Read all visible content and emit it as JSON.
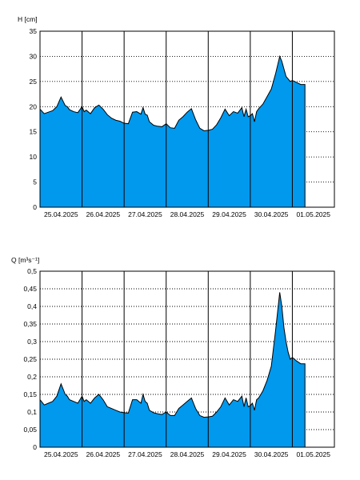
{
  "chart_data": [
    {
      "type": "area",
      "ylabel": "H [cm]",
      "ylim": [
        0,
        35
      ],
      "yticks": [
        "0",
        "5",
        "10",
        "15",
        "20",
        "25",
        "30",
        "35"
      ],
      "ytick_values": [
        0,
        5,
        10,
        15,
        20,
        25,
        30,
        35
      ],
      "x_day_labels": [
        "25.04.2025",
        "26.04.2025",
        "27.04.2025",
        "28.04.2025",
        "29.04.2025",
        "30.04.2025",
        "01.05.2025"
      ],
      "xlim_days": [
        25.0,
        32.0
      ],
      "grid": true,
      "fill_color": "#0099ee",
      "series": [
        {
          "x": [
            25.0,
            25.1,
            25.2,
            25.3,
            25.4,
            25.5,
            25.6,
            25.65,
            25.7,
            25.8,
            25.9,
            26.0,
            26.05,
            26.1,
            26.2,
            26.3,
            26.4,
            26.5,
            26.6,
            26.7,
            26.8,
            26.9,
            27.0,
            27.1,
            27.2,
            27.3,
            27.4,
            27.45,
            27.5,
            27.55,
            27.6,
            27.7,
            27.8,
            27.9,
            28.0,
            28.1,
            28.2,
            28.3,
            28.4,
            28.5,
            28.6,
            28.7,
            28.8,
            28.9,
            29.0,
            29.1,
            29.2,
            29.3,
            29.4,
            29.5,
            29.6,
            29.7,
            29.8,
            29.85,
            29.9,
            29.95,
            30.0,
            30.05,
            30.1,
            30.15,
            30.2,
            30.3,
            30.4,
            30.5,
            30.6,
            30.7,
            30.75,
            30.8,
            30.85,
            30.9,
            30.95,
            31.0,
            31.1,
            31.2,
            31.3
          ],
          "y": [
            19.5,
            18.6,
            18.9,
            19.2,
            20.0,
            21.9,
            20.2,
            20.0,
            19.4,
            19.0,
            18.8,
            20.0,
            19.0,
            19.3,
            18.6,
            19.8,
            20.3,
            19.5,
            18.4,
            17.7,
            17.3,
            17.1,
            16.7,
            16.6,
            18.9,
            19.0,
            18.5,
            19.8,
            18.5,
            18.3,
            17.0,
            16.3,
            16.1,
            16.0,
            16.6,
            15.8,
            15.7,
            17.3,
            18.0,
            18.9,
            19.6,
            17.4,
            15.7,
            15.2,
            15.3,
            15.5,
            16.4,
            17.8,
            19.5,
            18.2,
            19.0,
            18.7,
            19.8,
            18.0,
            19.5,
            18.0,
            18.2,
            18.6,
            17.0,
            19.0,
            19.6,
            20.5,
            22.0,
            23.5,
            26.5,
            30.0,
            29.0,
            27.5,
            26.0,
            25.5,
            25.0,
            25.2,
            24.8,
            24.4,
            24.4
          ]
        }
      ]
    },
    {
      "type": "area",
      "ylabel": "Q [m³s⁻¹]",
      "ylim": [
        0,
        0.5
      ],
      "yticks": [
        "0",
        "0,05",
        "0,1",
        "0,15",
        "0,2",
        "0,25",
        "0,3",
        "0,35",
        "0,4",
        "0,45",
        "0,5"
      ],
      "ytick_values": [
        0,
        0.05,
        0.1,
        0.15,
        0.2,
        0.25,
        0.3,
        0.35,
        0.4,
        0.45,
        0.5
      ],
      "x_day_labels": [
        "25.04.2025",
        "26.04.2025",
        "27.04.2025",
        "28.04.2025",
        "29.04.2025",
        "30.04.2025",
        "01.05.2025"
      ],
      "xlim_days": [
        25.0,
        32.0
      ],
      "grid": true,
      "fill_color": "#0099ee",
      "series": [
        {
          "x": [
            25.0,
            25.1,
            25.2,
            25.3,
            25.4,
            25.5,
            25.6,
            25.65,
            25.7,
            25.8,
            25.9,
            26.0,
            26.05,
            26.1,
            26.2,
            26.3,
            26.4,
            26.5,
            26.6,
            26.7,
            26.8,
            26.9,
            27.0,
            27.1,
            27.2,
            27.3,
            27.4,
            27.45,
            27.5,
            27.55,
            27.6,
            27.7,
            27.8,
            27.9,
            28.0,
            28.1,
            28.2,
            28.3,
            28.4,
            28.5,
            28.6,
            28.7,
            28.8,
            28.9,
            29.0,
            29.1,
            29.2,
            29.3,
            29.4,
            29.5,
            29.6,
            29.7,
            29.8,
            29.85,
            29.9,
            29.95,
            30.0,
            30.05,
            30.1,
            30.15,
            30.2,
            30.3,
            30.4,
            30.5,
            30.6,
            30.7,
            30.75,
            30.8,
            30.85,
            30.9,
            30.95,
            31.0,
            31.1,
            31.2,
            31.3
          ],
          "y": [
            0.135,
            0.12,
            0.125,
            0.13,
            0.145,
            0.18,
            0.15,
            0.145,
            0.135,
            0.13,
            0.125,
            0.145,
            0.13,
            0.135,
            0.125,
            0.14,
            0.15,
            0.135,
            0.115,
            0.11,
            0.105,
            0.1,
            0.098,
            0.097,
            0.135,
            0.135,
            0.125,
            0.15,
            0.13,
            0.125,
            0.105,
            0.098,
            0.095,
            0.093,
            0.1,
            0.09,
            0.09,
            0.11,
            0.12,
            0.13,
            0.14,
            0.11,
            0.09,
            0.085,
            0.086,
            0.088,
            0.1,
            0.115,
            0.14,
            0.12,
            0.135,
            0.13,
            0.145,
            0.115,
            0.14,
            0.115,
            0.118,
            0.125,
            0.105,
            0.135,
            0.14,
            0.16,
            0.19,
            0.23,
            0.33,
            0.44,
            0.4,
            0.34,
            0.3,
            0.27,
            0.25,
            0.255,
            0.245,
            0.237,
            0.237
          ]
        }
      ]
    }
  ]
}
